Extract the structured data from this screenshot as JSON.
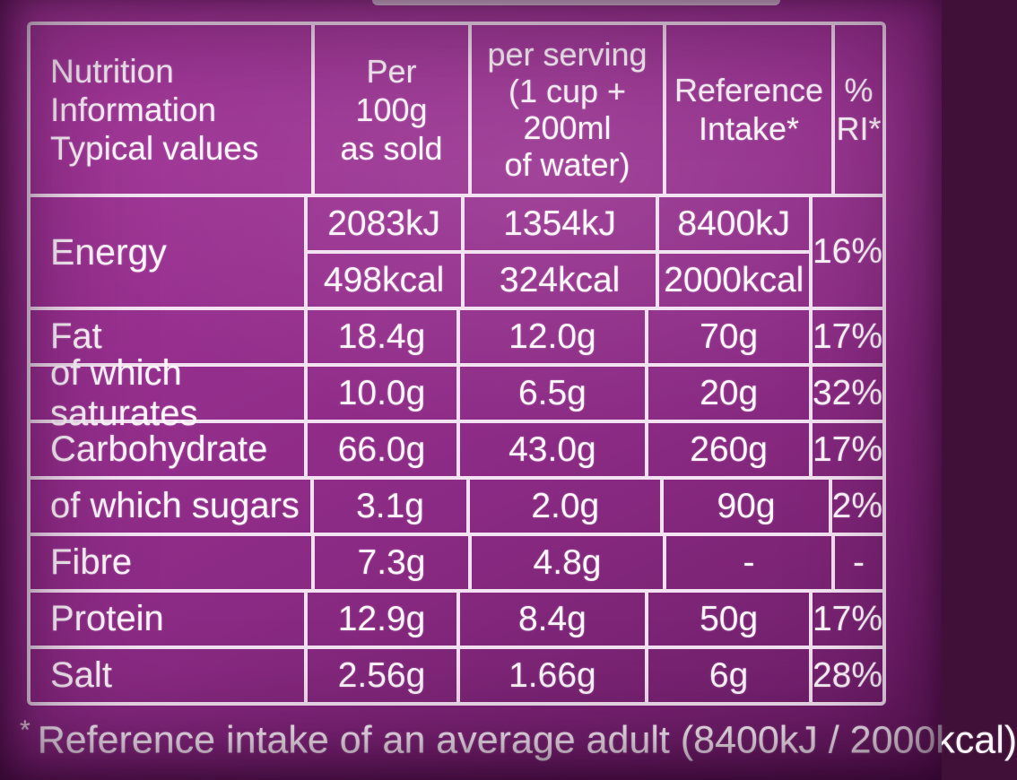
{
  "colors": {
    "background": "#962f8e",
    "background_edge": "#63195d",
    "line": "#f3e2f1",
    "text": "#fdf7fc"
  },
  "table": {
    "header": {
      "col1_lines": [
        "Nutrition",
        "Information",
        "Typical values"
      ],
      "col2_lines": [
        "Per",
        "100g",
        "as sold"
      ],
      "col3_lines": [
        "per serving",
        "(1 cup +",
        "200ml",
        "of water)"
      ],
      "col4_lines": [
        "Reference",
        "Intake*"
      ],
      "col5_lines": [
        "%",
        "RI*"
      ]
    },
    "energy": {
      "label": "Energy",
      "per100g_kj": "2083kJ",
      "per100g_kcal": "498kcal",
      "serving_kj": "1354kJ",
      "serving_kcal": "324kcal",
      "ri_kj": "8400kJ",
      "ri_kcal": "2000kcal",
      "pct": "16%"
    },
    "rows": [
      {
        "label": "Fat",
        "per100g": "18.4g",
        "serving": "12.0g",
        "ri": "70g",
        "pct": "17%"
      },
      {
        "label": "of which saturates",
        "per100g": "10.0g",
        "serving": "6.5g",
        "ri": "20g",
        "pct": "32%"
      },
      {
        "label": "Carbohydrate",
        "per100g": "66.0g",
        "serving": "43.0g",
        "ri": "260g",
        "pct": "17%"
      },
      {
        "label": "of which sugars",
        "per100g": "3.1g",
        "serving": "2.0g",
        "ri": "90g",
        "pct": "2%"
      },
      {
        "label": "Fibre",
        "per100g": "7.3g",
        "serving": "4.8g",
        "ri": "-",
        "pct": "-"
      },
      {
        "label": "Protein",
        "per100g": "12.9g",
        "serving": "8.4g",
        "ri": "50g",
        "pct": "17%"
      },
      {
        "label": "Salt",
        "per100g": "2.56g",
        "serving": "1.66g",
        "ri": "6g",
        "pct": "28%"
      }
    ],
    "footnote": {
      "marker": "*",
      "text": "Reference intake of an average adult (8400kJ / 2000kcal)"
    }
  }
}
